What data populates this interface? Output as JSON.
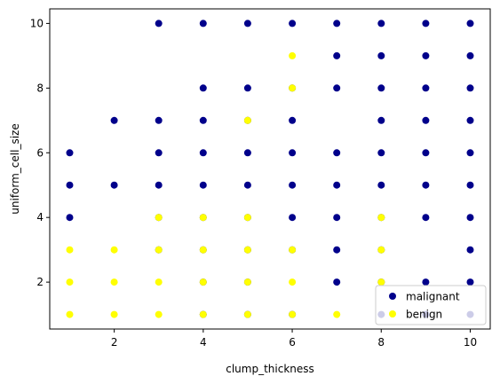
{
  "chart_data": {
    "type": "scatter",
    "title": "",
    "xlabel": "clump_thickness",
    "ylabel": "uniform_cell_size",
    "xlim": [
      0.55,
      10.45
    ],
    "ylim": [
      0.55,
      10.45
    ],
    "xticks": [
      2,
      4,
      6,
      8,
      10
    ],
    "yticks": [
      2,
      4,
      6,
      8,
      10
    ],
    "grid": false,
    "legend_position": "lower-right",
    "series": [
      {
        "name": "malignant",
        "color": "#00008b",
        "points": [
          [
            1,
            4
          ],
          [
            1,
            5
          ],
          [
            1,
            6
          ],
          [
            2,
            5
          ],
          [
            2,
            7
          ],
          [
            3,
            3
          ],
          [
            3,
            4
          ],
          [
            3,
            5
          ],
          [
            3,
            6
          ],
          [
            3,
            7
          ],
          [
            3,
            10
          ],
          [
            4,
            1
          ],
          [
            4,
            2
          ],
          [
            4,
            3
          ],
          [
            4,
            4
          ],
          [
            4,
            5
          ],
          [
            4,
            6
          ],
          [
            4,
            7
          ],
          [
            4,
            8
          ],
          [
            4,
            10
          ],
          [
            5,
            1
          ],
          [
            5,
            2
          ],
          [
            5,
            3
          ],
          [
            5,
            4
          ],
          [
            5,
            5
          ],
          [
            5,
            6
          ],
          [
            5,
            7
          ],
          [
            5,
            8
          ],
          [
            5,
            10
          ],
          [
            6,
            1
          ],
          [
            6,
            3
          ],
          [
            6,
            4
          ],
          [
            6,
            5
          ],
          [
            6,
            6
          ],
          [
            6,
            7
          ],
          [
            6,
            8
          ],
          [
            6,
            10
          ],
          [
            7,
            2
          ],
          [
            7,
            3
          ],
          [
            7,
            4
          ],
          [
            7,
            5
          ],
          [
            7,
            6
          ],
          [
            7,
            8
          ],
          [
            7,
            9
          ],
          [
            7,
            10
          ],
          [
            8,
            1
          ],
          [
            8,
            2
          ],
          [
            8,
            3
          ],
          [
            8,
            4
          ],
          [
            8,
            5
          ],
          [
            8,
            6
          ],
          [
            8,
            7
          ],
          [
            8,
            8
          ],
          [
            8,
            9
          ],
          [
            8,
            10
          ],
          [
            9,
            1
          ],
          [
            9,
            2
          ],
          [
            9,
            4
          ],
          [
            9,
            5
          ],
          [
            9,
            6
          ],
          [
            9,
            7
          ],
          [
            9,
            8
          ],
          [
            9,
            9
          ],
          [
            9,
            10
          ],
          [
            10,
            1
          ],
          [
            10,
            2
          ],
          [
            10,
            3
          ],
          [
            10,
            4
          ],
          [
            10,
            5
          ],
          [
            10,
            6
          ],
          [
            10,
            7
          ],
          [
            10,
            8
          ],
          [
            10,
            9
          ],
          [
            10,
            10
          ]
        ]
      },
      {
        "name": "benign",
        "color": "#ffff00",
        "points": [
          [
            1,
            1
          ],
          [
            1,
            2
          ],
          [
            1,
            3
          ],
          [
            2,
            1
          ],
          [
            2,
            2
          ],
          [
            2,
            3
          ],
          [
            3,
            1
          ],
          [
            3,
            2
          ],
          [
            3,
            3
          ],
          [
            3,
            4
          ],
          [
            4,
            1
          ],
          [
            4,
            2
          ],
          [
            4,
            3
          ],
          [
            4,
            4
          ],
          [
            5,
            1
          ],
          [
            5,
            2
          ],
          [
            5,
            3
          ],
          [
            5,
            4
          ],
          [
            5,
            7
          ],
          [
            6,
            1
          ],
          [
            6,
            2
          ],
          [
            6,
            3
          ],
          [
            6,
            8
          ],
          [
            6,
            9
          ],
          [
            7,
            1
          ],
          [
            8,
            2
          ],
          [
            8,
            3
          ],
          [
            8,
            4
          ]
        ]
      }
    ]
  }
}
